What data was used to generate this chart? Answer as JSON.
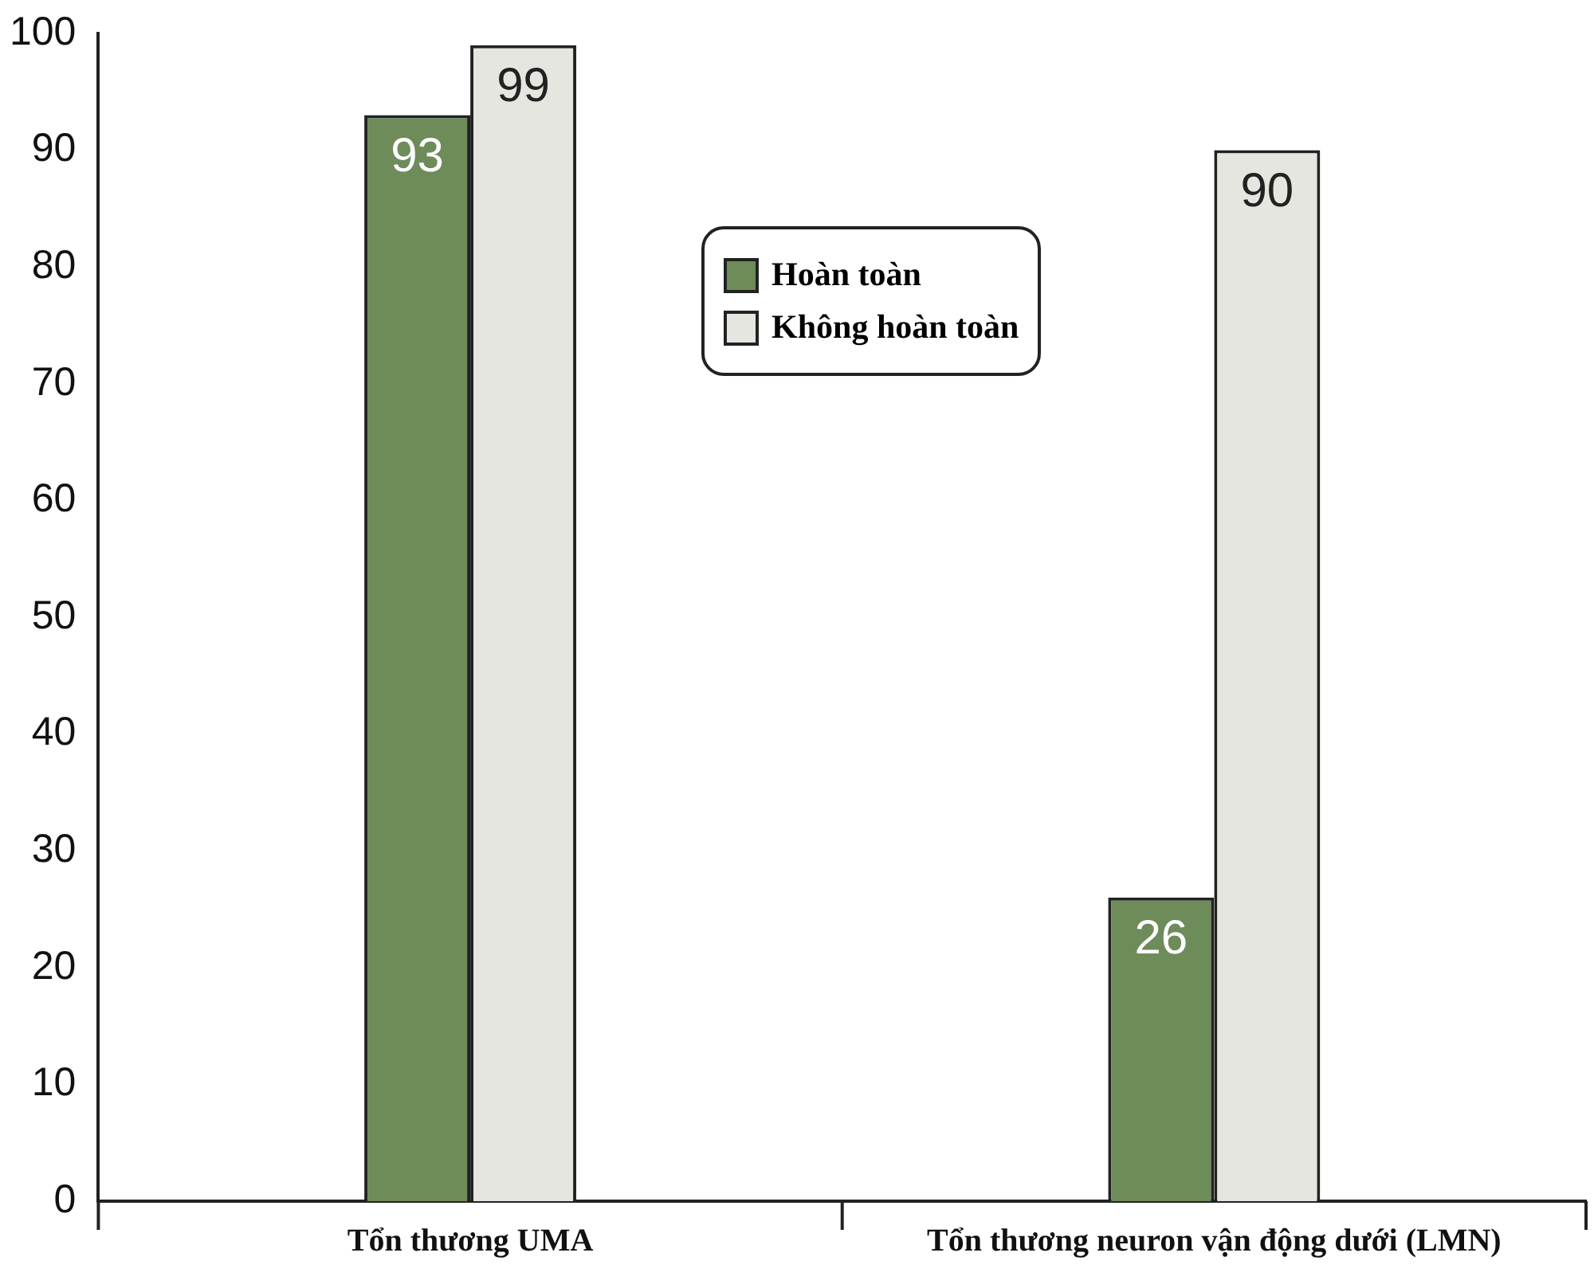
{
  "chart_data": {
    "type": "bar",
    "categories": [
      "Tổn thương UMA",
      "Tổn thương neuron vận động dưới (LMN)"
    ],
    "series": [
      {
        "name": "Hoàn toàn",
        "color": "#6e8b5a",
        "values": [
          93,
          26
        ]
      },
      {
        "name": "Không hoàn toàn",
        "color": "#e4e6df",
        "values": [
          99,
          90
        ]
      }
    ],
    "ylim": [
      0,
      100
    ],
    "yticks": [
      0,
      10,
      20,
      30,
      40,
      50,
      60,
      70,
      80,
      90,
      100
    ],
    "grid": false,
    "legend": "top",
    "data_labels": true
  }
}
